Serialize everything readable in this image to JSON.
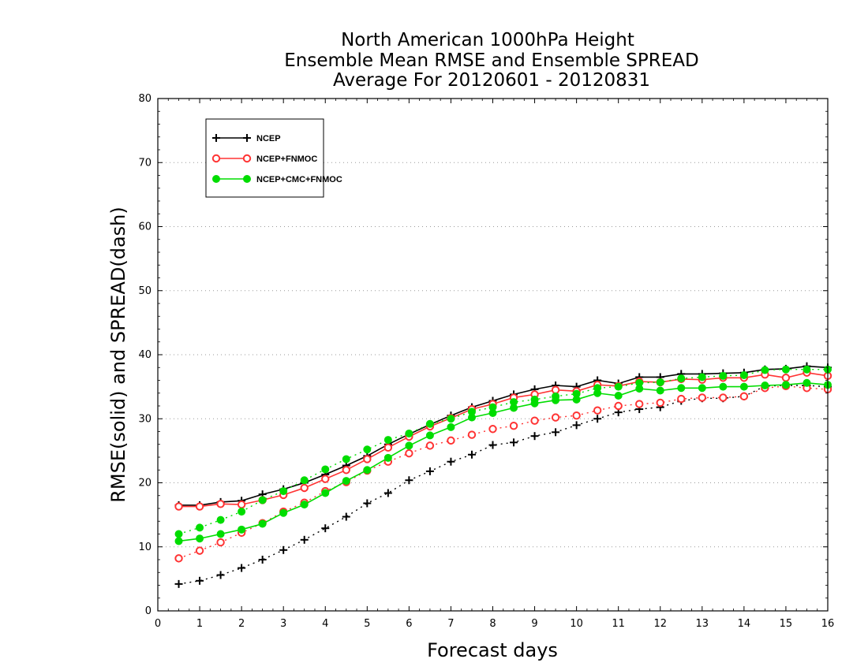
{
  "chart_data": {
    "type": "line",
    "title": [
      "North American 1000hPa Height",
      "Ensemble Mean RMSE and Ensemble SPREAD",
      "Average For 20120601 - 20120831"
    ],
    "xlabel": "Forecast days",
    "ylabel": "RMSE(solid) and SPREAD(dash)",
    "xlim": [
      0,
      16
    ],
    "ylim": [
      0,
      80
    ],
    "xticks": [
      0,
      1,
      2,
      3,
      4,
      5,
      6,
      7,
      8,
      9,
      10,
      11,
      12,
      13,
      14,
      15,
      16
    ],
    "yticks": [
      0,
      10,
      20,
      30,
      40,
      50,
      60,
      70,
      80
    ],
    "grid": "horizontal-dotted",
    "legend_position": "top-left",
    "x": [
      0.5,
      1.0,
      1.5,
      2.0,
      2.5,
      3.0,
      3.5,
      4.0,
      4.5,
      5.0,
      5.5,
      6.0,
      6.5,
      7.0,
      7.5,
      8.0,
      8.5,
      9.0,
      9.5,
      10.0,
      10.5,
      11.0,
      11.5,
      12.0,
      12.5,
      13.0,
      13.5,
      14.0,
      14.5,
      15.0,
      15.5,
      16.0
    ],
    "series": [
      {
        "name": "NCEP",
        "color": "#000000",
        "marker": "plus",
        "rmse": [
          16.5,
          16.5,
          17.0,
          17.2,
          18.2,
          19.0,
          20.0,
          21.3,
          22.7,
          24.2,
          26.0,
          27.6,
          29.1,
          30.5,
          31.8,
          32.8,
          33.8,
          34.6,
          35.2,
          35.0,
          36.0,
          35.5,
          36.5,
          36.5,
          37.0,
          37.0,
          37.1,
          37.2,
          37.7,
          37.8,
          38.2,
          38.0
        ],
        "spread": [
          4.2,
          4.7,
          5.6,
          6.7,
          8.0,
          9.5,
          11.1,
          12.9,
          14.7,
          16.8,
          18.4,
          20.4,
          21.8,
          23.3,
          24.4,
          25.9,
          26.3,
          27.3,
          27.9,
          29.0,
          30.0,
          31.0,
          31.5,
          31.8,
          32.8,
          33.2,
          33.2,
          33.5,
          35.1,
          35.2,
          35.2,
          35.0
        ]
      },
      {
        "name": "NCEP+FNMOC",
        "color": "#ff3333",
        "marker": "open-circle",
        "rmse": [
          16.3,
          16.3,
          16.7,
          16.6,
          17.3,
          18.1,
          19.2,
          20.6,
          22.0,
          23.7,
          25.5,
          27.2,
          28.8,
          30.1,
          31.5,
          32.3,
          33.3,
          33.8,
          34.5,
          34.3,
          35.3,
          35.1,
          35.8,
          35.7,
          36.2,
          36.1,
          36.4,
          36.4,
          36.9,
          36.4,
          37.2,
          36.7
        ],
        "spread": [
          8.2,
          9.4,
          10.7,
          12.2,
          13.7,
          15.5,
          16.9,
          18.7,
          20.1,
          21.9,
          23.3,
          24.6,
          25.8,
          26.6,
          27.5,
          28.4,
          28.9,
          29.7,
          30.2,
          30.5,
          31.3,
          32.0,
          32.3,
          32.5,
          33.1,
          33.3,
          33.3,
          33.5,
          34.8,
          35.1,
          34.8,
          34.6
        ]
      },
      {
        "name": "NCEP+CMC+FNMOC",
        "color": "#00dd00",
        "marker": "filled-circle",
        "rmse": [
          10.9,
          11.3,
          12.0,
          12.7,
          13.6,
          15.3,
          16.6,
          18.4,
          20.3,
          22.0,
          23.9,
          25.8,
          27.4,
          28.7,
          30.2,
          30.9,
          31.7,
          32.4,
          32.9,
          33.0,
          34.0,
          33.6,
          34.7,
          34.4,
          34.8,
          34.8,
          35.0,
          35.0,
          35.2,
          35.3,
          35.6,
          35.3
        ],
        "spread": [
          12.0,
          13.0,
          14.2,
          15.5,
          17.3,
          18.7,
          20.4,
          22.1,
          23.7,
          25.2,
          26.7,
          27.7,
          29.2,
          30.0,
          31.1,
          31.8,
          32.6,
          33.0,
          33.5,
          33.9,
          34.8,
          35.0,
          35.6,
          35.7,
          36.3,
          36.5,
          36.7,
          36.8,
          37.6,
          37.7,
          37.7,
          37.7
        ]
      }
    ]
  }
}
